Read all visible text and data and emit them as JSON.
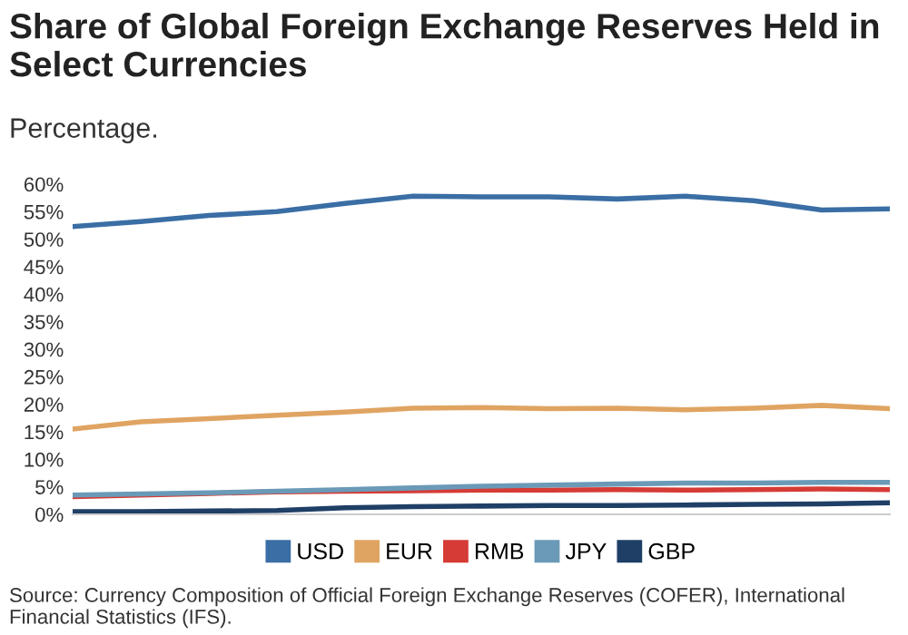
{
  "chart_data": {
    "type": "line",
    "title": "Share of Global Foreign Exchange Reserves Held in Select Currencies",
    "subtitle": "Percentage.",
    "categories": [
      null,
      null,
      null,
      null,
      null,
      null,
      null,
      null,
      null,
      null,
      null,
      null,
      null
    ],
    "series": [
      {
        "name": "USD",
        "color": "#3a6ea5",
        "values": [
          52.3,
          53.2,
          54.3,
          55,
          56.5,
          57.8,
          57.7,
          57.7,
          57.3,
          57.8,
          57,
          55.3,
          55.5
        ]
      },
      {
        "name": "EUR",
        "color": "#e0a462",
        "values": [
          15.5,
          16.8,
          17.4,
          18,
          18.6,
          19.3,
          19.4,
          19.2,
          19.3,
          19,
          19.3,
          19.8,
          19.2
        ]
      },
      {
        "name": "RMB",
        "color": "#d63b35",
        "values": [
          3.2,
          3.5,
          3.8,
          4.1,
          4.2,
          4.3,
          4.4,
          4.4,
          4.5,
          4.4,
          4.5,
          4.6,
          4.5
        ]
      },
      {
        "name": "JPY",
        "color": "#6a9ab7",
        "values": [
          3.5,
          3.7,
          3.9,
          4.2,
          4.5,
          4.8,
          5.1,
          5.3,
          5.5,
          5.7,
          5.7,
          5.8,
          5.8
        ]
      },
      {
        "name": "GBP",
        "color": "#1f3f66",
        "values": [
          0.5,
          0.5,
          0.6,
          0.7,
          1.2,
          1.4,
          1.5,
          1.6,
          1.6,
          1.7,
          1.8,
          1.9,
          2.1
        ]
      }
    ],
    "ylim": [
      0,
      60
    ],
    "yticks": [
      {
        "value": 0,
        "label": "0%"
      },
      {
        "value": 5,
        "label": "5%"
      },
      {
        "value": 10,
        "label": "10%"
      },
      {
        "value": 15,
        "label": "15%"
      },
      {
        "value": 20,
        "label": "20%"
      },
      {
        "value": 25,
        "label": "25%"
      },
      {
        "value": 30,
        "label": "30%"
      },
      {
        "value": 35,
        "label": "35%"
      },
      {
        "value": 40,
        "label": "40%"
      },
      {
        "value": 45,
        "label": "45%"
      },
      {
        "value": 50,
        "label": "50%"
      },
      {
        "value": 55,
        "label": "55%"
      },
      {
        "value": 60,
        "label": "60%"
      }
    ],
    "grid": false,
    "legend": "bottom",
    "marker": "none",
    "line_style": "solid",
    "annotations": [
      "Source: Currency Composition of Official Foreign Exchange Reserves (COFER), International Financial Statistics (IFS)."
    ]
  }
}
